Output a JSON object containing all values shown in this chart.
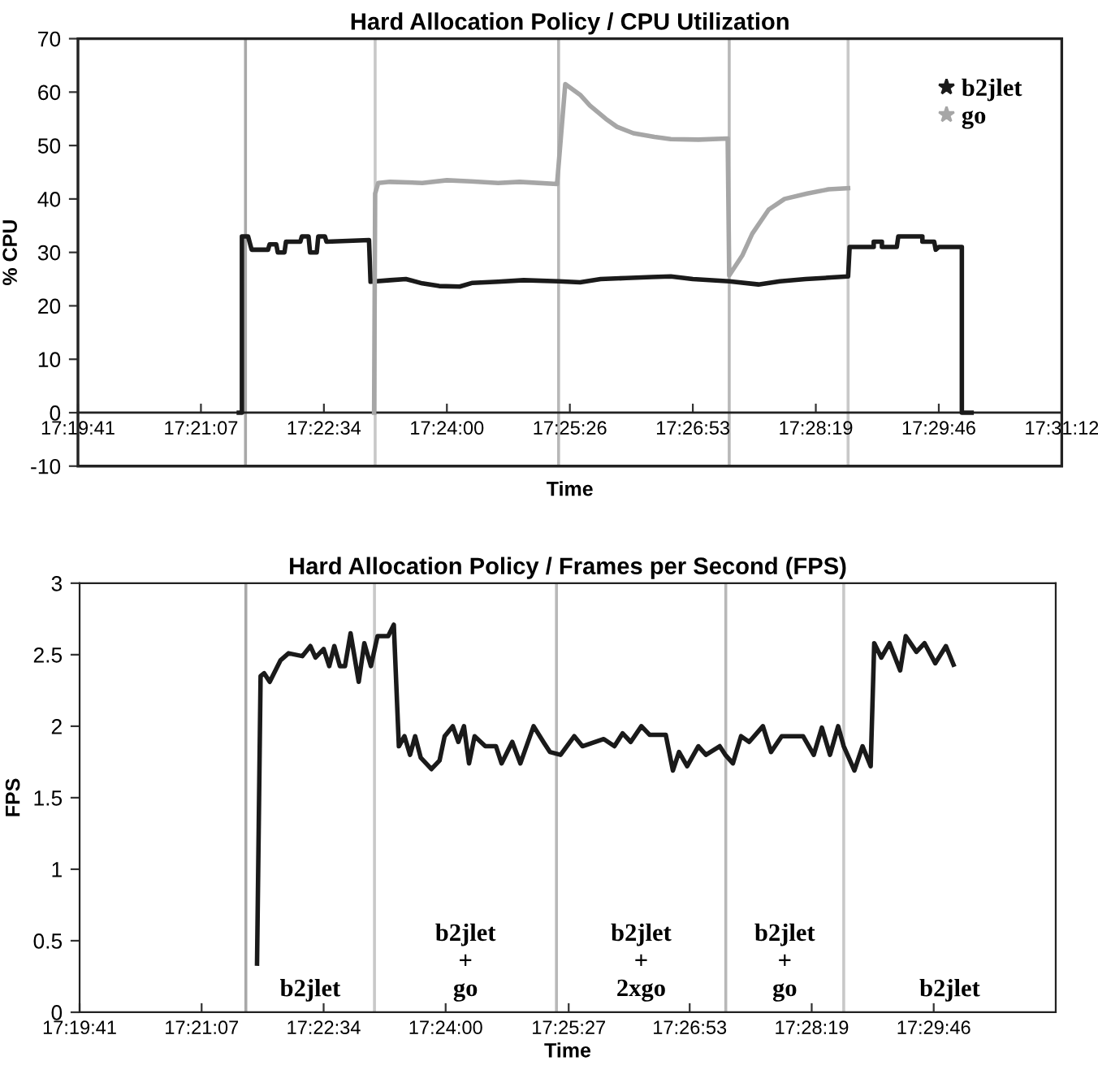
{
  "chart_data": [
    {
      "type": "line",
      "title": "Hard Allocation Policy / CPU Utilization",
      "xlabel": "Time",
      "ylabel": "% CPU",
      "xlim": [
        17.328,
        17.52
      ],
      "ylim": [
        -10,
        70
      ],
      "xticks": [
        {
          "value": 17.328,
          "label": "17:19:41"
        },
        {
          "value": 17.352,
          "label": "17:21:07"
        },
        {
          "value": 17.376,
          "label": "17:22:34"
        },
        {
          "value": 17.4,
          "label": "17:24:00"
        },
        {
          "value": 17.424,
          "label": "17:25:26"
        },
        {
          "value": 17.448,
          "label": "17:26:53"
        },
        {
          "value": 17.472,
          "label": "17:28:19"
        },
        {
          "value": 17.496,
          "label": "17:29:46"
        },
        {
          "value": 17.52,
          "label": "17:31:12"
        }
      ],
      "yticks": [
        -10,
        0,
        10,
        20,
        30,
        40,
        50,
        60,
        70
      ],
      "legend": "top right",
      "ref_lines": [
        {
          "axis": "x",
          "value": 17.3607,
          "color": "#a8a8a8"
        },
        {
          "axis": "x",
          "value": 17.386,
          "color": "#c8c8c8"
        },
        {
          "axis": "x",
          "value": 17.4218,
          "color": "#b8b8b8"
        },
        {
          "axis": "x",
          "value": 17.4551,
          "color": "#b8b8b8"
        },
        {
          "axis": "x",
          "value": 17.4783,
          "color": "#c8c8c8"
        }
      ],
      "series": [
        {
          "name": "b2jlet",
          "color": "#1a1a1a",
          "x": [
            17.3594,
            17.36,
            17.36,
            17.3612,
            17.3619,
            17.3651,
            17.3654,
            17.3667,
            17.367,
            17.3683,
            17.3686,
            17.3714,
            17.3717,
            17.373,
            17.3733,
            17.3746,
            17.3749,
            17.3762,
            17.3765,
            17.3848,
            17.3851,
            17.3889,
            17.392,
            17.3952,
            17.3985,
            17.4025,
            17.405,
            17.41,
            17.415,
            17.4218,
            17.426,
            17.43,
            17.435,
            17.44,
            17.4437,
            17.448,
            17.4551,
            17.4608,
            17.465,
            17.47,
            17.475,
            17.4783,
            17.4786,
            17.4833,
            17.4833,
            17.4849,
            17.4849,
            17.4878,
            17.4881,
            17.4928,
            17.4928,
            17.4951,
            17.4954,
            17.496,
            17.5005,
            17.5005,
            17.5024
          ],
          "values": [
            0,
            0,
            33,
            33,
            30.5,
            30.5,
            31.5,
            31.5,
            30,
            30,
            32,
            32,
            33,
            33,
            30,
            30,
            33,
            33,
            32,
            32.3,
            24.5,
            24.8,
            25,
            24.2,
            23.7,
            23.6,
            24.3,
            24.5,
            24.8,
            24.6,
            24.4,
            25,
            25.2,
            25.4,
            25.5,
            25,
            24.6,
            24,
            24.6,
            25,
            25.3,
            25.5,
            31,
            31,
            32,
            32,
            31,
            31,
            33,
            33,
            32,
            32,
            30.5,
            31,
            31,
            0,
            0
          ]
        },
        {
          "name": "go",
          "color": "#a6a6a6",
          "x": [
            17.3858,
            17.386,
            17.3866,
            17.3889,
            17.3952,
            17.4,
            17.4047,
            17.41,
            17.4142,
            17.4215,
            17.4231,
            17.426,
            17.4279,
            17.431,
            17.4332,
            17.4364,
            17.4405,
            17.4437,
            17.4491,
            17.4548,
            17.4551,
            17.4577,
            17.4596,
            17.4628,
            17.4659,
            17.4703,
            17.4745,
            17.4783
          ],
          "values": [
            0,
            41,
            43,
            43.2,
            43,
            43.5,
            43.3,
            43,
            43.2,
            42.8,
            61.5,
            59.5,
            57.5,
            55,
            53.5,
            52.3,
            51.6,
            51.2,
            51.1,
            51.3,
            25.7,
            29.5,
            33.5,
            38,
            40,
            41,
            41.8,
            42
          ]
        }
      ]
    },
    {
      "type": "line",
      "title": "Hard Allocation Policy / Frames per Second (FPS)",
      "xlabel": "Time",
      "ylabel": "FPS",
      "xlim": [
        17.328,
        17.52
      ],
      "ylim": [
        0,
        3
      ],
      "xticks": [
        {
          "value": 17.328,
          "label": "17:19:41"
        },
        {
          "value": 17.352,
          "label": "17:21:07"
        },
        {
          "value": 17.376,
          "label": "17:22:34"
        },
        {
          "value": 17.4,
          "label": "17:24:00"
        },
        {
          "value": 17.4242,
          "label": "17:25:27"
        },
        {
          "value": 17.448,
          "label": "17:26:53"
        },
        {
          "value": 17.472,
          "label": "17:28:19"
        },
        {
          "value": 17.496,
          "label": "17:29:46"
        }
      ],
      "yticks": [
        0,
        0.5,
        1,
        1.5,
        2,
        2.5,
        3
      ],
      "ref_lines": [
        {
          "axis": "x",
          "value": 17.3607,
          "color": "#a8a8a8"
        },
        {
          "axis": "x",
          "value": 17.386,
          "color": "#c8c8c8"
        },
        {
          "axis": "x",
          "value": 17.4218,
          "color": "#b8b8b8"
        },
        {
          "axis": "x",
          "value": 17.4551,
          "color": "#b8b8b8"
        },
        {
          "axis": "x",
          "value": 17.4783,
          "color": "#c8c8c8"
        }
      ],
      "annotations": [
        "b2jlet",
        "b2jlet\n+\ngo",
        "b2jlet\n+\n2xgo",
        "b2jlet\n+\ngo",
        "b2jlet"
      ],
      "series": [
        {
          "color": "#1a1a1a",
          "x": [
            17.3629,
            17.3636,
            17.3643,
            17.3654,
            17.3675,
            17.3691,
            17.3718,
            17.3734,
            17.3744,
            17.376,
            17.3771,
            17.3781,
            17.3792,
            17.3802,
            17.3813,
            17.3829,
            17.384,
            17.3853,
            17.3866,
            17.3887,
            17.3898,
            17.3908,
            17.3919,
            17.393,
            17.394,
            17.3951,
            17.3972,
            17.3988,
            17.3998,
            17.4014,
            17.4025,
            17.4036,
            17.4046,
            17.4057,
            17.4078,
            17.4099,
            17.411,
            17.4131,
            17.4147,
            17.4173,
            17.4194,
            17.4205,
            17.4226,
            17.4253,
            17.4269,
            17.4311,
            17.4332,
            17.4348,
            17.4364,
            17.4385,
            17.4401,
            17.4433,
            17.4447,
            17.4459,
            17.4475,
            17.4497,
            17.4512,
            17.4539,
            17.455,
            17.4565,
            17.4581,
            17.4597,
            17.4624,
            17.464,
            17.4661,
            17.4703,
            17.4724,
            17.474,
            17.4756,
            17.4772,
            17.4783,
            17.4804,
            17.482,
            17.4836,
            17.4843,
            17.4857,
            17.4873,
            17.4894,
            17.4905,
            17.4926,
            17.4942,
            17.4963,
            17.4984,
            17.4999
          ],
          "values": [
            0.34,
            2.35,
            2.37,
            2.31,
            2.46,
            2.51,
            2.49,
            2.56,
            2.48,
            2.54,
            2.42,
            2.56,
            2.42,
            2.42,
            2.65,
            2.31,
            2.58,
            2.42,
            2.63,
            2.63,
            2.71,
            1.86,
            1.93,
            1.8,
            1.93,
            1.78,
            1.7,
            1.76,
            1.93,
            2.0,
            1.89,
            2.0,
            1.74,
            1.93,
            1.86,
            1.86,
            1.74,
            1.89,
            1.74,
            2.0,
            1.88,
            1.82,
            1.8,
            1.93,
            1.86,
            1.91,
            1.86,
            1.95,
            1.89,
            2.0,
            1.94,
            1.94,
            1.69,
            1.82,
            1.72,
            1.86,
            1.8,
            1.86,
            1.8,
            1.74,
            1.93,
            1.89,
            2.0,
            1.82,
            1.93,
            1.93,
            1.8,
            1.99,
            1.8,
            2.0,
            1.86,
            1.69,
            1.86,
            1.72,
            2.58,
            2.48,
            2.58,
            2.39,
            2.63,
            2.52,
            2.58,
            2.44,
            2.56,
            2.43
          ]
        }
      ]
    }
  ]
}
